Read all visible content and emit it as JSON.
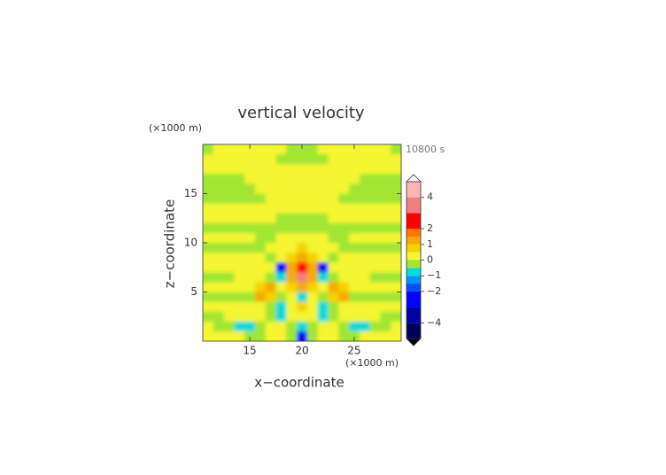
{
  "chart_data": {
    "type": "contour",
    "title": "vertical velocity",
    "time_label": "10800 s",
    "x_label": "x−coordinate",
    "y_label": "z−coordinate",
    "x_unit": "(×1000 m)",
    "y_unit": "(×1000 m)",
    "xlim": [
      10.5,
      29.5
    ],
    "ylim": [
      0,
      20
    ],
    "xticks": [
      15,
      20,
      25
    ],
    "yticks": [
      5,
      10,
      15
    ],
    "x": [
      11,
      12,
      13,
      14,
      15,
      16,
      17,
      18,
      19,
      20,
      21,
      22,
      23,
      24,
      25,
      26,
      27,
      28,
      29
    ],
    "y": [
      19.5,
      18.5,
      17.5,
      16.5,
      15.5,
      14.5,
      13.5,
      12.5,
      11.5,
      10.5,
      9.5,
      8.5,
      7.5,
      6.5,
      5.5,
      4.5,
      3.5,
      2.5,
      1.5,
      0.5
    ],
    "z": [
      [
        -0.2,
        0.2,
        0.2,
        0.2,
        0.2,
        0.2,
        0.2,
        0.2,
        -0.2,
        -0.2,
        -0.2,
        0.2,
        0.2,
        0.2,
        0.2,
        0.2,
        0.2,
        0.2,
        -0.2
      ],
      [
        0.2,
        0.2,
        0.2,
        0.2,
        0.2,
        0.2,
        0.2,
        -0.2,
        -0.2,
        -0.2,
        -0.2,
        -0.2,
        0.2,
        0.2,
        0.2,
        0.2,
        0.2,
        0.2,
        0.2
      ],
      [
        0.2,
        0.2,
        0.2,
        0.2,
        0.2,
        0.2,
        0.2,
        0.2,
        0.2,
        0.2,
        0.2,
        0.2,
        0.2,
        0.2,
        0.2,
        0.2,
        0.2,
        0.2,
        0.2
      ],
      [
        -0.2,
        -0.2,
        -0.2,
        -0.2,
        0.2,
        0.2,
        0.2,
        0.2,
        0.2,
        0.2,
        0.2,
        0.2,
        0.2,
        0.2,
        0.2,
        -0.2,
        -0.2,
        -0.2,
        -0.2
      ],
      [
        -0.2,
        -0.2,
        -0.2,
        -0.2,
        -0.2,
        0.2,
        0.2,
        0.2,
        0.2,
        0.2,
        0.2,
        0.2,
        0.2,
        0.2,
        -0.2,
        -0.2,
        -0.2,
        -0.2,
        -0.2
      ],
      [
        -0.2,
        -0.2,
        -0.2,
        -0.2,
        -0.2,
        -0.2,
        0.2,
        0.2,
        0.2,
        0.2,
        0.2,
        0.2,
        0.2,
        -0.2,
        -0.2,
        -0.2,
        -0.2,
        -0.2,
        -0.2
      ],
      [
        0.2,
        0.2,
        0.2,
        0.2,
        0.2,
        0.2,
        0.2,
        0.2,
        0.2,
        0.2,
        0.2,
        0.2,
        0.2,
        0.2,
        0.2,
        0.2,
        0.2,
        0.2,
        0.2
      ],
      [
        0.2,
        0.2,
        0.2,
        0.2,
        0.2,
        0.2,
        0.2,
        -0.2,
        -0.2,
        -0.2,
        -0.2,
        -0.2,
        0.2,
        0.2,
        0.2,
        0.2,
        0.2,
        0.2,
        0.2
      ],
      [
        -0.2,
        -0.2,
        -0.2,
        -0.2,
        -0.2,
        -0.2,
        -0.2,
        -0.2,
        -0.2,
        -0.2,
        -0.2,
        -0.2,
        -0.2,
        -0.2,
        -0.2,
        -0.2,
        -0.2,
        -0.2,
        -0.2
      ],
      [
        0.2,
        0.2,
        0.2,
        0.2,
        0.2,
        -0.2,
        -0.2,
        0.2,
        0.2,
        0.2,
        0.2,
        0.2,
        -0.2,
        -0.2,
        0.2,
        0.2,
        0.2,
        0.2,
        0.2
      ],
      [
        -0.2,
        -0.2,
        -0.2,
        -0.2,
        -0.2,
        -0.2,
        0.2,
        0.2,
        0.2,
        0.7,
        0.2,
        0.2,
        0.2,
        -0.2,
        -0.2,
        -0.2,
        -0.2,
        -0.2,
        -0.2
      ],
      [
        0.2,
        0.2,
        0.2,
        0.2,
        0.2,
        0.2,
        -0.2,
        0.2,
        0.7,
        1.2,
        0.7,
        0.2,
        -0.2,
        0.2,
        0.2,
        0.2,
        0.2,
        0.2,
        0.2
      ],
      [
        0.2,
        0.2,
        0.2,
        0.2,
        0.2,
        0.2,
        0.2,
        -2.5,
        1.2,
        2.5,
        1.2,
        -2.5,
        0.2,
        0.2,
        0.2,
        0.2,
        0.2,
        0.2,
        0.2
      ],
      [
        -0.2,
        -0.2,
        -0.2,
        0.2,
        0.2,
        0.2,
        -0.2,
        -0.8,
        1.2,
        3.5,
        1.2,
        -0.8,
        -0.2,
        0.2,
        0.2,
        0.2,
        -0.2,
        -0.2,
        -0.2
      ],
      [
        0.2,
        0.2,
        0.2,
        0.2,
        0.2,
        0.7,
        1.2,
        0.2,
        0.7,
        1.2,
        0.7,
        0.2,
        1.2,
        0.7,
        0.2,
        0.2,
        0.2,
        0.2,
        0.2
      ],
      [
        -0.2,
        -0.2,
        -0.2,
        -0.2,
        -0.2,
        1.2,
        0.7,
        -0.2,
        0.2,
        -0.8,
        0.2,
        -0.2,
        0.7,
        1.2,
        -0.2,
        -0.2,
        -0.2,
        -0.2,
        -0.2
      ],
      [
        0.2,
        0.2,
        0.2,
        0.2,
        0.2,
        0.2,
        -0.2,
        -0.8,
        0.2,
        0.7,
        0.2,
        -0.8,
        -0.2,
        0.2,
        0.2,
        0.2,
        0.2,
        0.2,
        0.2
      ],
      [
        -0.2,
        -0.2,
        0.2,
        0.2,
        0.2,
        0.2,
        -0.2,
        -0.8,
        0.2,
        0.2,
        0.2,
        -0.8,
        -0.2,
        0.2,
        0.2,
        0.2,
        0.2,
        -0.2,
        -0.2
      ],
      [
        0.2,
        -0.2,
        -0.2,
        -0.8,
        -0.8,
        -0.2,
        0.2,
        0.2,
        -0.2,
        -0.8,
        -0.2,
        0.2,
        0.2,
        -0.2,
        -0.8,
        -0.8,
        -0.2,
        -0.2,
        0.2
      ],
      [
        0.2,
        0.2,
        0.2,
        0.2,
        -0.2,
        -0.2,
        0.2,
        0.2,
        -0.2,
        -2.5,
        -0.2,
        0.2,
        0.2,
        -0.2,
        -0.2,
        0.2,
        0.2,
        0.2,
        0.2
      ]
    ],
    "levels": [
      -5,
      -4,
      -3,
      -2,
      -1.5,
      -1,
      -0.5,
      0,
      0.5,
      1,
      1.5,
      2,
      3,
      4,
      5
    ],
    "level_colors": [
      "#00005a",
      "#0000a0",
      "#0000ff",
      "#0050ff",
      "#0096ff",
      "#00dcdc",
      "#a0e632",
      "#f5f532",
      "#f5d200",
      "#f5aa00",
      "#ff7800",
      "#ff0000",
      "#f08080",
      "#ffb4b4"
    ],
    "clim": [
      -5,
      5
    ],
    "cticks": [
      {
        "value": -4,
        "label": "−4"
      },
      {
        "value": -2,
        "label": "−2"
      },
      {
        "value": -1,
        "label": "−1"
      },
      0,
      1,
      2,
      4
    ]
  }
}
